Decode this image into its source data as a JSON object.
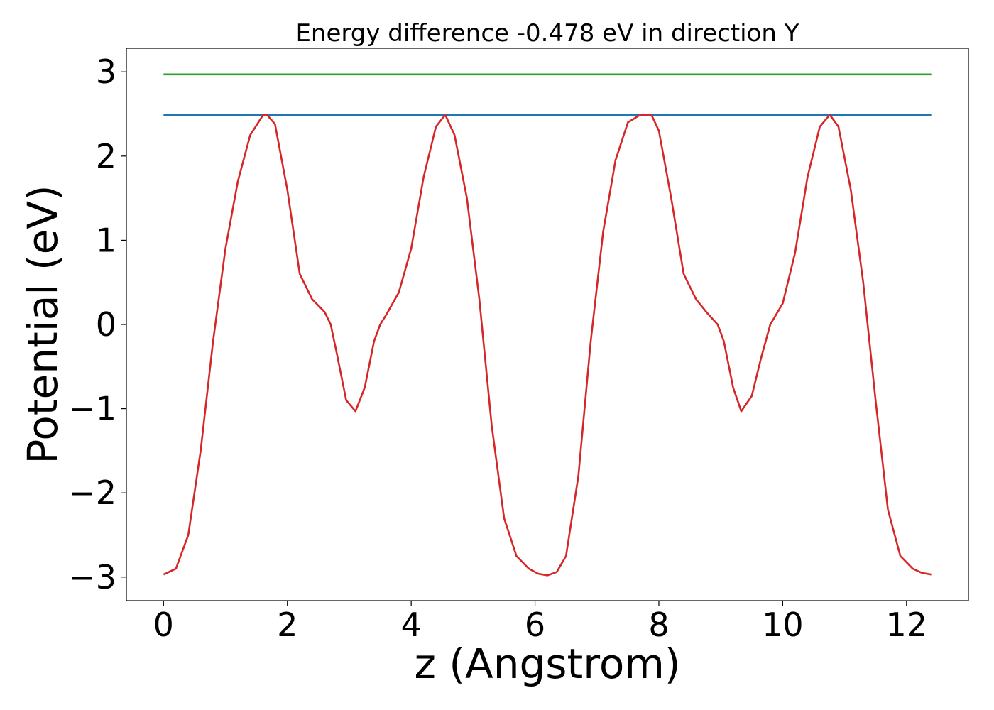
{
  "chart_data": {
    "type": "line",
    "title": "Energy difference -0.478 eV in direction Y",
    "xlabel": "z (Angstrom)",
    "ylabel": "Potential (eV)",
    "xlim": [
      -0.6,
      13.0
    ],
    "ylim": [
      -3.28,
      3.28
    ],
    "xticks": [
      0,
      2,
      4,
      6,
      8,
      10,
      12
    ],
    "xtick_labels": [
      "0",
      "2",
      "4",
      "6",
      "8",
      "10",
      "12"
    ],
    "yticks": [
      3,
      2,
      1,
      0,
      -1,
      -2,
      -3
    ],
    "ytick_labels": [
      "3",
      "2",
      "1",
      "0",
      "−1",
      "−2",
      "−3"
    ],
    "grid": false,
    "series": [
      {
        "color": "#2ca02c",
        "x": [
          0,
          12.4
        ],
        "y": [
          2.97,
          2.97
        ]
      },
      {
        "color": "#1f77b4",
        "x": [
          0,
          12.4
        ],
        "y": [
          2.49,
          2.49
        ]
      },
      {
        "color": "#d62728",
        "x": [
          0,
          0.2,
          0.4,
          0.6,
          0.8,
          1.0,
          1.2,
          1.4,
          1.6,
          1.67,
          1.8,
          2.0,
          2.2,
          2.4,
          2.6,
          2.7,
          2.8,
          2.95,
          3.1,
          3.25,
          3.4,
          3.5,
          3.6,
          3.8,
          4.0,
          4.2,
          4.4,
          4.55,
          4.7,
          4.9,
          5.1,
          5.3,
          5.5,
          5.7,
          5.9,
          6.05,
          6.2,
          6.35,
          6.5,
          6.7,
          6.9,
          7.1,
          7.3,
          7.5,
          7.7,
          7.88,
          8.0,
          8.2,
          8.4,
          8.6,
          8.8,
          8.95,
          9.05,
          9.2,
          9.33,
          9.5,
          9.65,
          9.8,
          10.0,
          10.2,
          10.4,
          10.6,
          10.76,
          10.9,
          11.1,
          11.3,
          11.5,
          11.7,
          11.9,
          12.1,
          12.25,
          12.4
        ],
        "y": [
          -2.97,
          -2.9,
          -2.5,
          -1.5,
          -0.2,
          0.9,
          1.7,
          2.25,
          2.48,
          2.49,
          2.38,
          1.6,
          0.6,
          0.3,
          0.15,
          0.0,
          -0.35,
          -0.9,
          -1.03,
          -0.75,
          -0.2,
          0.0,
          0.12,
          0.38,
          0.9,
          1.75,
          2.35,
          2.49,
          2.25,
          1.5,
          0.3,
          -1.2,
          -2.3,
          -2.75,
          -2.9,
          -2.96,
          -2.98,
          -2.94,
          -2.75,
          -1.8,
          -0.2,
          1.1,
          1.95,
          2.4,
          2.49,
          2.49,
          2.3,
          1.5,
          0.6,
          0.3,
          0.12,
          0.0,
          -0.2,
          -0.75,
          -1.03,
          -0.85,
          -0.4,
          0.0,
          0.25,
          0.85,
          1.75,
          2.35,
          2.49,
          2.35,
          1.6,
          0.5,
          -0.9,
          -2.2,
          -2.75,
          -2.9,
          -2.95,
          -2.97
        ]
      }
    ]
  }
}
